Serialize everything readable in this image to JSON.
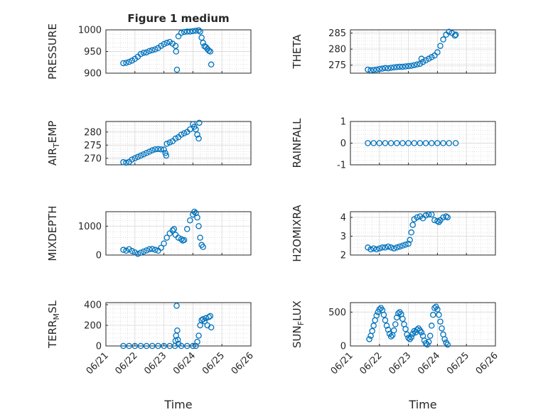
{
  "figure": {
    "title": "Figure 1 medium",
    "series_color": "#0072BD",
    "grid": true,
    "x_tick_labels": [
      "06/21",
      "06/22",
      "06/23",
      "06/24",
      "06/25",
      "06/26"
    ],
    "x_label": "Time"
  },
  "chart_data": [
    {
      "type": "scatter",
      "ylabel": "PRESSURE",
      "yticks": [
        900,
        950,
        1000
      ],
      "ylim": [
        900,
        1000
      ],
      "points": [
        [
          1.6,
          923
        ],
        [
          1.7,
          924
        ],
        [
          1.8,
          926
        ],
        [
          1.9,
          929
        ],
        [
          2.0,
          933
        ],
        [
          2.1,
          938
        ],
        [
          2.2,
          944
        ],
        [
          2.3,
          947
        ],
        [
          2.4,
          948
        ],
        [
          2.5,
          951
        ],
        [
          2.6,
          953
        ],
        [
          2.7,
          955
        ],
        [
          2.8,
          958
        ],
        [
          2.9,
          963
        ],
        [
          3.0,
          967
        ],
        [
          3.1,
          970
        ],
        [
          3.2,
          972
        ],
        [
          3.3,
          968
        ],
        [
          3.4,
          963
        ],
        [
          3.42,
          950
        ],
        [
          3.45,
          908
        ],
        [
          3.5,
          985
        ],
        [
          3.6,
          993
        ],
        [
          3.7,
          995
        ],
        [
          3.8,
          996
        ],
        [
          3.9,
          996
        ],
        [
          4.0,
          997
        ],
        [
          4.1,
          998
        ],
        [
          4.2,
          999
        ],
        [
          4.25,
          996
        ],
        [
          4.3,
          982
        ],
        [
          4.35,
          970
        ],
        [
          4.4,
          962
        ],
        [
          4.45,
          960
        ],
        [
          4.5,
          956
        ],
        [
          4.55,
          952
        ],
        [
          4.6,
          950
        ],
        [
          4.63,
          920
        ]
      ]
    },
    {
      "type": "scatter",
      "ylabel": "THETA",
      "yticks": [
        275,
        280,
        285
      ],
      "ylim": [
        272.5,
        286
      ],
      "points": [
        [
          1.6,
          273.6
        ],
        [
          1.7,
          273.4
        ],
        [
          1.8,
          273.5
        ],
        [
          1.9,
          273.6
        ],
        [
          2.0,
          273.8
        ],
        [
          2.1,
          273.9
        ],
        [
          2.2,
          274.1
        ],
        [
          2.3,
          274.0
        ],
        [
          2.4,
          274.2
        ],
        [
          2.5,
          274.3
        ],
        [
          2.6,
          274.4
        ],
        [
          2.7,
          274.5
        ],
        [
          2.8,
          274.5
        ],
        [
          2.9,
          274.6
        ],
        [
          3.0,
          274.7
        ],
        [
          3.1,
          274.8
        ],
        [
          3.2,
          275.0
        ],
        [
          3.3,
          275.2
        ],
        [
          3.4,
          275.4
        ],
        [
          3.45,
          277.0
        ],
        [
          3.5,
          276.0
        ],
        [
          3.6,
          276.5
        ],
        [
          3.7,
          277.0
        ],
        [
          3.8,
          277.5
        ],
        [
          3.9,
          278.0
        ],
        [
          4.0,
          279.0
        ],
        [
          4.1,
          281.0
        ],
        [
          4.2,
          283.0
        ],
        [
          4.3,
          284.5
        ],
        [
          4.4,
          285.4
        ],
        [
          4.5,
          285.0
        ],
        [
          4.6,
          284.2
        ],
        [
          4.63,
          284.5
        ]
      ]
    },
    {
      "type": "scatter",
      "ylabel": "AIR_TEMP",
      "yticks": [
        270,
        275,
        280
      ],
      "ylim": [
        267.5,
        284
      ],
      "points": [
        [
          1.6,
          268.5
        ],
        [
          1.7,
          268.3
        ],
        [
          1.8,
          268.6
        ],
        [
          1.9,
          269.5
        ],
        [
          2.0,
          270.0
        ],
        [
          2.1,
          270.5
        ],
        [
          2.2,
          271.0
        ],
        [
          2.3,
          271.5
        ],
        [
          2.4,
          272.0
        ],
        [
          2.5,
          272.5
        ],
        [
          2.6,
          273.0
        ],
        [
          2.7,
          273.4
        ],
        [
          2.8,
          273.5
        ],
        [
          2.9,
          273.4
        ],
        [
          3.0,
          273.3
        ],
        [
          3.05,
          272.0
        ],
        [
          3.08,
          271.0
        ],
        [
          3.1,
          275.5
        ],
        [
          3.2,
          276.0
        ],
        [
          3.3,
          276.5
        ],
        [
          3.4,
          277.5
        ],
        [
          3.5,
          278.0
        ],
        [
          3.6,
          279.0
        ],
        [
          3.7,
          279.5
        ],
        [
          3.8,
          280.0
        ],
        [
          3.9,
          281.0
        ],
        [
          4.0,
          283.0
        ],
        [
          4.05,
          282.0
        ],
        [
          4.1,
          281.0
        ],
        [
          4.15,
          279.0
        ],
        [
          4.2,
          277.5
        ],
        [
          4.22,
          283.5
        ]
      ]
    },
    {
      "type": "scatter",
      "ylabel": "RAINFALL",
      "yticks": [
        -1,
        0,
        1
      ],
      "ylim": [
        -1,
        1
      ],
      "points": [
        [
          1.6,
          0
        ],
        [
          1.8,
          0
        ],
        [
          2.0,
          0
        ],
        [
          2.2,
          0
        ],
        [
          2.4,
          0
        ],
        [
          2.6,
          0
        ],
        [
          2.8,
          0
        ],
        [
          3.0,
          0
        ],
        [
          3.2,
          0
        ],
        [
          3.4,
          0
        ],
        [
          3.6,
          0
        ],
        [
          3.8,
          0
        ],
        [
          4.0,
          0
        ],
        [
          4.2,
          0
        ],
        [
          4.4,
          0
        ],
        [
          4.63,
          0
        ]
      ]
    },
    {
      "type": "scatter",
      "ylabel": "MIXDEPTH",
      "yticks": [
        0,
        1000
      ],
      "ylim": [
        0,
        1500
      ],
      "points": [
        [
          1.6,
          180
        ],
        [
          1.7,
          150
        ],
        [
          1.8,
          200
        ],
        [
          1.9,
          140
        ],
        [
          2.0,
          90
        ],
        [
          2.1,
          40
        ],
        [
          2.2,
          80
        ],
        [
          2.3,
          120
        ],
        [
          2.4,
          160
        ],
        [
          2.5,
          200
        ],
        [
          2.6,
          210
        ],
        [
          2.7,
          180
        ],
        [
          2.8,
          150
        ],
        [
          2.9,
          250
        ],
        [
          3.0,
          400
        ],
        [
          3.1,
          600
        ],
        [
          3.2,
          750
        ],
        [
          3.3,
          850
        ],
        [
          3.35,
          900
        ],
        [
          3.4,
          700
        ],
        [
          3.5,
          600
        ],
        [
          3.6,
          550
        ],
        [
          3.65,
          500
        ],
        [
          3.7,
          520
        ],
        [
          3.8,
          900
        ],
        [
          3.9,
          1200
        ],
        [
          4.0,
          1400
        ],
        [
          4.05,
          1500
        ],
        [
          4.1,
          1450
        ],
        [
          4.15,
          1300
        ],
        [
          4.2,
          1000
        ],
        [
          4.25,
          600
        ],
        [
          4.3,
          350
        ],
        [
          4.35,
          280
        ]
      ]
    },
    {
      "type": "scatter",
      "ylabel": "H2OMIXRA",
      "yticks": [
        2,
        3,
        4
      ],
      "ylim": [
        2,
        4.3
      ],
      "points": [
        [
          1.6,
          2.4
        ],
        [
          1.7,
          2.3
        ],
        [
          1.8,
          2.35
        ],
        [
          1.9,
          2.3
        ],
        [
          2.0,
          2.35
        ],
        [
          2.1,
          2.4
        ],
        [
          2.2,
          2.4
        ],
        [
          2.3,
          2.45
        ],
        [
          2.4,
          2.4
        ],
        [
          2.5,
          2.35
        ],
        [
          2.6,
          2.4
        ],
        [
          2.7,
          2.45
        ],
        [
          2.8,
          2.5
        ],
        [
          2.9,
          2.55
        ],
        [
          3.0,
          2.6
        ],
        [
          3.05,
          2.8
        ],
        [
          3.1,
          3.2
        ],
        [
          3.15,
          3.6
        ],
        [
          3.2,
          3.9
        ],
        [
          3.3,
          4.0
        ],
        [
          3.4,
          4.05
        ],
        [
          3.5,
          3.95
        ],
        [
          3.6,
          4.1
        ],
        [
          3.7,
          4.15
        ],
        [
          3.8,
          4.15
        ],
        [
          3.9,
          3.85
        ],
        [
          4.0,
          3.8
        ],
        [
          4.05,
          3.75
        ],
        [
          4.1,
          3.85
        ],
        [
          4.2,
          4.0
        ],
        [
          4.3,
          4.05
        ],
        [
          4.35,
          4.0
        ]
      ]
    },
    {
      "type": "scatter",
      "ylabel": "TERR_MSL",
      "yticks": [
        0,
        200,
        400
      ],
      "ylim": [
        0,
        420
      ],
      "points": [
        [
          1.6,
          0
        ],
        [
          1.8,
          0
        ],
        [
          2.0,
          0
        ],
        [
          2.2,
          0
        ],
        [
          2.4,
          0
        ],
        [
          2.6,
          0
        ],
        [
          2.8,
          0
        ],
        [
          3.0,
          0
        ],
        [
          3.2,
          0
        ],
        [
          3.38,
          0
        ],
        [
          3.4,
          50
        ],
        [
          3.42,
          100
        ],
        [
          3.44,
          390
        ],
        [
          3.46,
          150
        ],
        [
          3.48,
          60
        ],
        [
          3.5,
          20
        ],
        [
          3.6,
          0
        ],
        [
          3.8,
          0
        ],
        [
          4.0,
          0
        ],
        [
          4.1,
          0
        ],
        [
          4.15,
          40
        ],
        [
          4.2,
          100
        ],
        [
          4.25,
          200
        ],
        [
          4.3,
          250
        ],
        [
          4.35,
          260
        ],
        [
          4.4,
          240
        ],
        [
          4.45,
          270
        ],
        [
          4.5,
          200
        ],
        [
          4.55,
          280
        ],
        [
          4.6,
          290
        ],
        [
          4.63,
          180
        ]
      ]
    },
    {
      "type": "scatter",
      "ylabel": "SUN_FLUX",
      "yticks": [
        0,
        500
      ],
      "ylim": [
        0,
        640
      ],
      "points": [
        [
          1.65,
          100
        ],
        [
          1.7,
          150
        ],
        [
          1.75,
          220
        ],
        [
          1.8,
          300
        ],
        [
          1.85,
          380
        ],
        [
          1.9,
          450
        ],
        [
          1.95,
          500
        ],
        [
          2.0,
          540
        ],
        [
          2.05,
          560
        ],
        [
          2.1,
          530
        ],
        [
          2.15,
          460
        ],
        [
          2.2,
          380
        ],
        [
          2.25,
          300
        ],
        [
          2.3,
          240
        ],
        [
          2.35,
          180
        ],
        [
          2.4,
          140
        ],
        [
          2.45,
          160
        ],
        [
          2.5,
          230
        ],
        [
          2.55,
          320
        ],
        [
          2.6,
          420
        ],
        [
          2.65,
          480
        ],
        [
          2.7,
          500
        ],
        [
          2.75,
          470
        ],
        [
          2.8,
          400
        ],
        [
          2.85,
          320
        ],
        [
          2.9,
          250
        ],
        [
          2.95,
          170
        ],
        [
          3.0,
          120
        ],
        [
          3.05,
          100
        ],
        [
          3.1,
          130
        ],
        [
          3.15,
          180
        ],
        [
          3.2,
          220
        ],
        [
          3.25,
          200
        ],
        [
          3.3,
          240
        ],
        [
          3.35,
          260
        ],
        [
          3.4,
          230
        ],
        [
          3.45,
          200
        ],
        [
          3.5,
          150
        ],
        [
          3.55,
          80
        ],
        [
          3.6,
          40
        ],
        [
          3.65,
          20
        ],
        [
          3.7,
          60
        ],
        [
          3.75,
          150
        ],
        [
          3.8,
          300
        ],
        [
          3.85,
          460
        ],
        [
          3.9,
          560
        ],
        [
          3.95,
          580
        ],
        [
          4.0,
          540
        ],
        [
          4.05,
          460
        ],
        [
          4.1,
          360
        ],
        [
          4.15,
          260
        ],
        [
          4.2,
          170
        ],
        [
          4.25,
          100
        ],
        [
          4.3,
          50
        ],
        [
          4.35,
          20
        ]
      ]
    }
  ]
}
